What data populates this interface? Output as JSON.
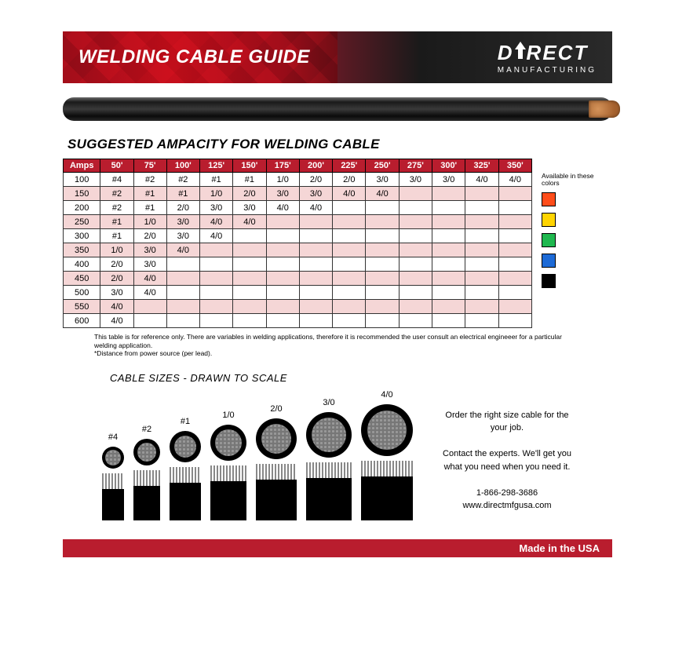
{
  "banner": {
    "title": "WELDING CABLE GUIDE",
    "brand_main_left": "D",
    "brand_main_right": "RECT",
    "brand_sub": "MANUFACTURING",
    "bg_red": "#b91d2e",
    "bg_dark": "#1a1a1a"
  },
  "section_title": "SUGGESTED AMPACITY FOR WELDING CABLE",
  "ampacity": {
    "header_bg": "#b91d2e",
    "row_alt_bg": "#f5d6d6",
    "columns": [
      "Amps",
      "50'",
      "75'",
      "100'",
      "125'",
      "150'",
      "175'",
      "200'",
      "225'",
      "250'",
      "275'",
      "300'",
      "325'",
      "350'"
    ],
    "rows": [
      [
        "100",
        "#4",
        "#2",
        "#2",
        "#1",
        "#1",
        "1/0",
        "2/0",
        "2/0",
        "3/0",
        "3/0",
        "3/0",
        "4/0",
        "4/0"
      ],
      [
        "150",
        "#2",
        "#1",
        "#1",
        "1/0",
        "2/0",
        "3/0",
        "3/0",
        "4/0",
        "4/0",
        "",
        "",
        "",
        ""
      ],
      [
        "200",
        "#2",
        "#1",
        "2/0",
        "3/0",
        "3/0",
        "4/0",
        "4/0",
        "",
        "",
        "",
        "",
        "",
        ""
      ],
      [
        "250",
        "#1",
        "1/0",
        "3/0",
        "4/0",
        "4/0",
        "",
        "",
        "",
        "",
        "",
        "",
        "",
        ""
      ],
      [
        "300",
        "#1",
        "2/0",
        "3/0",
        "4/0",
        "",
        "",
        "",
        "",
        "",
        "",
        "",
        "",
        ""
      ],
      [
        "350",
        "1/0",
        "3/0",
        "4/0",
        "",
        "",
        "",
        "",
        "",
        "",
        "",
        "",
        "",
        ""
      ],
      [
        "400",
        "2/0",
        "3/0",
        "",
        "",
        "",
        "",
        "",
        "",
        "",
        "",
        "",
        "",
        ""
      ],
      [
        "450",
        "2/0",
        "4/0",
        "",
        "",
        "",
        "",
        "",
        "",
        "",
        "",
        "",
        "",
        ""
      ],
      [
        "500",
        "3/0",
        "4/0",
        "",
        "",
        "",
        "",
        "",
        "",
        "",
        "",
        "",
        "",
        ""
      ],
      [
        "550",
        "4/0",
        "",
        "",
        "",
        "",
        "",
        "",
        "",
        "",
        "",
        "",
        "",
        ""
      ],
      [
        "600",
        "4/0",
        "",
        "",
        "",
        "",
        "",
        "",
        "",
        "",
        "",
        "",
        "",
        ""
      ]
    ]
  },
  "legend": {
    "title": "Available in these colors",
    "swatches": [
      "#ff4d1a",
      "#ffd400",
      "#1fb84f",
      "#1d6ad6",
      "#000000"
    ]
  },
  "footnote": {
    "line1": "This table is for reference only. There are variables in welding applications, therefore it is recommended the user consult an electrical engineeer for a particular welding application.",
    "line2": "*Distance from power source (per lead)."
  },
  "sizes": {
    "title": "CABLE SIZES - DRAWN TO SCALE",
    "items": [
      {
        "label": "#4",
        "outer": 28,
        "ring": 4,
        "strip_w": 28,
        "strip_h": 40
      },
      {
        "label": "#2",
        "outer": 34,
        "ring": 5,
        "strip_w": 34,
        "strip_h": 44
      },
      {
        "label": "#1",
        "outer": 40,
        "ring": 6,
        "strip_w": 40,
        "strip_h": 48
      },
      {
        "label": "1/0",
        "outer": 46,
        "ring": 6,
        "strip_w": 46,
        "strip_h": 50
      },
      {
        "label": "2/0",
        "outer": 52,
        "ring": 7,
        "strip_w": 52,
        "strip_h": 52
      },
      {
        "label": "3/0",
        "outer": 58,
        "ring": 7,
        "strip_w": 58,
        "strip_h": 54
      },
      {
        "label": "4/0",
        "outer": 66,
        "ring": 8,
        "strip_w": 66,
        "strip_h": 56
      }
    ]
  },
  "contact": {
    "l1": "Order the right size cable for the your job.",
    "l2": "Contact the experts. We'll get you what you need when you need it.",
    "phone": "1-866-298-3686",
    "url": "www.directmfgusa.com"
  },
  "made": "Made in the USA"
}
